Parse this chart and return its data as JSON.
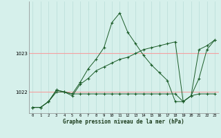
{
  "title": "Graphe pression niveau de la mer (hPa)",
  "bg_color": "#d6f0eb",
  "line_color": "#1a5c28",
  "grid_color_h": "#f5a0a0",
  "grid_color_v": "#b8ddd8",
  "xlim": [
    -0.5,
    23.5
  ],
  "ylim": [
    1021.45,
    1024.35
  ],
  "yticks": [
    1022,
    1023
  ],
  "xticks": [
    0,
    1,
    2,
    3,
    4,
    5,
    6,
    7,
    8,
    9,
    10,
    11,
    12,
    13,
    14,
    15,
    16,
    17,
    18,
    19,
    20,
    21,
    22,
    23
  ],
  "series1_x": [
    0,
    1,
    2,
    3,
    4,
    5,
    6,
    7,
    8,
    9,
    10,
    11,
    12,
    13,
    14,
    15,
    16,
    17,
    18,
    19,
    20,
    21,
    22,
    23
  ],
  "series1_y": [
    1021.6,
    1021.6,
    1021.75,
    1022.0,
    1022.0,
    1021.95,
    1021.95,
    1021.95,
    1021.95,
    1021.95,
    1021.95,
    1021.95,
    1021.95,
    1021.95,
    1021.95,
    1021.95,
    1021.95,
    1021.95,
    1021.95,
    1021.75,
    1021.9,
    1021.95,
    1021.95,
    1021.95
  ],
  "series2_x": [
    0,
    1,
    2,
    3,
    4,
    5,
    6,
    7,
    8,
    9,
    10,
    11,
    12,
    13,
    14,
    15,
    16,
    17,
    18,
    19,
    20,
    21,
    22,
    23
  ],
  "series2_y": [
    1021.6,
    1021.6,
    1021.75,
    1022.05,
    1022.0,
    1021.9,
    1022.2,
    1022.35,
    1022.55,
    1022.65,
    1022.75,
    1022.85,
    1022.9,
    1023.0,
    1023.1,
    1023.15,
    1023.2,
    1023.25,
    1023.3,
    1021.75,
    1021.9,
    1023.1,
    1023.2,
    1023.35
  ],
  "series3_x": [
    0,
    1,
    2,
    3,
    4,
    5,
    6,
    7,
    8,
    9,
    10,
    11,
    12,
    13,
    14,
    15,
    16,
    17,
    18,
    19,
    20,
    21,
    22,
    23
  ],
  "series3_y": [
    1021.6,
    1021.6,
    1021.75,
    1022.05,
    1022.0,
    1021.95,
    1022.25,
    1022.6,
    1022.85,
    1023.15,
    1023.8,
    1024.05,
    1023.55,
    1023.25,
    1022.95,
    1022.7,
    1022.5,
    1022.3,
    1021.75,
    1021.75,
    1021.9,
    1022.35,
    1023.1,
    1023.35
  ]
}
